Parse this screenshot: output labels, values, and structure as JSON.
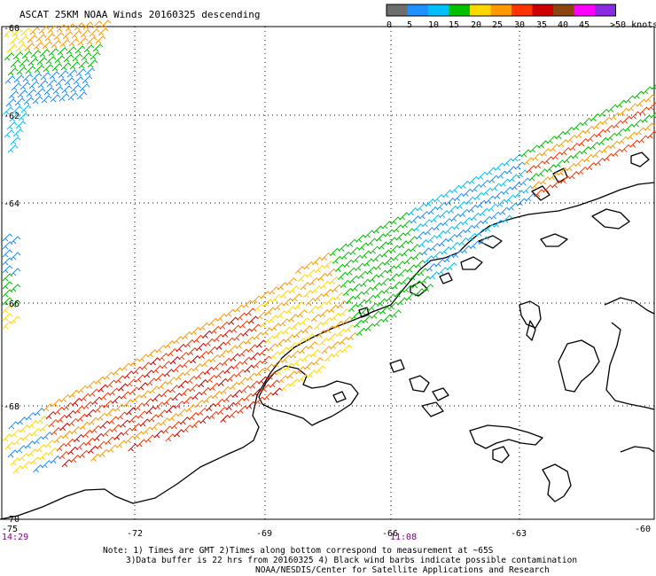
{
  "title": "ASCAT 25KM NOAA Winds 20160325 descending",
  "legend": {
    "labels": [
      "0",
      "5",
      "10",
      "15",
      "20",
      "25",
      "30",
      "35",
      "40",
      "45",
      ">50 knots"
    ],
    "colors": [
      "#6e6e6e",
      "#1e90ff",
      "#00bfff",
      "#00c000",
      "#ffd700",
      "#ff9900",
      "#ff3300",
      "#cc0000",
      "#8b4513",
      "#ff00ff",
      "#8a2be2"
    ]
  },
  "axes": {
    "lat_labels": [
      "-60",
      "-62",
      "-64",
      "-66",
      "-68",
      "-70"
    ],
    "lon_labels": [
      "-75",
      "-72",
      "-69",
      "-66",
      "-63",
      "-60"
    ]
  },
  "times": {
    "left": "14:29",
    "center": "11:08"
  },
  "notes": {
    "line1": "Note: 1) Times are GMT 2)Times along bottom correspond to measurement at ~65S",
    "line2": "3)Data buffer is 22 hrs from 20160325 4) Black wind barbs indicate possible contamination",
    "line3": "NOAA/NESDIS/Center for Satellite Applications and Research"
  },
  "barb_palette": [
    "#00bfff",
    "#1e90ff",
    "#00c000",
    "#ffd700",
    "#ff9900",
    "#ff3300",
    "#cc0000",
    "#8b4513"
  ],
  "land_color": "#000000"
}
